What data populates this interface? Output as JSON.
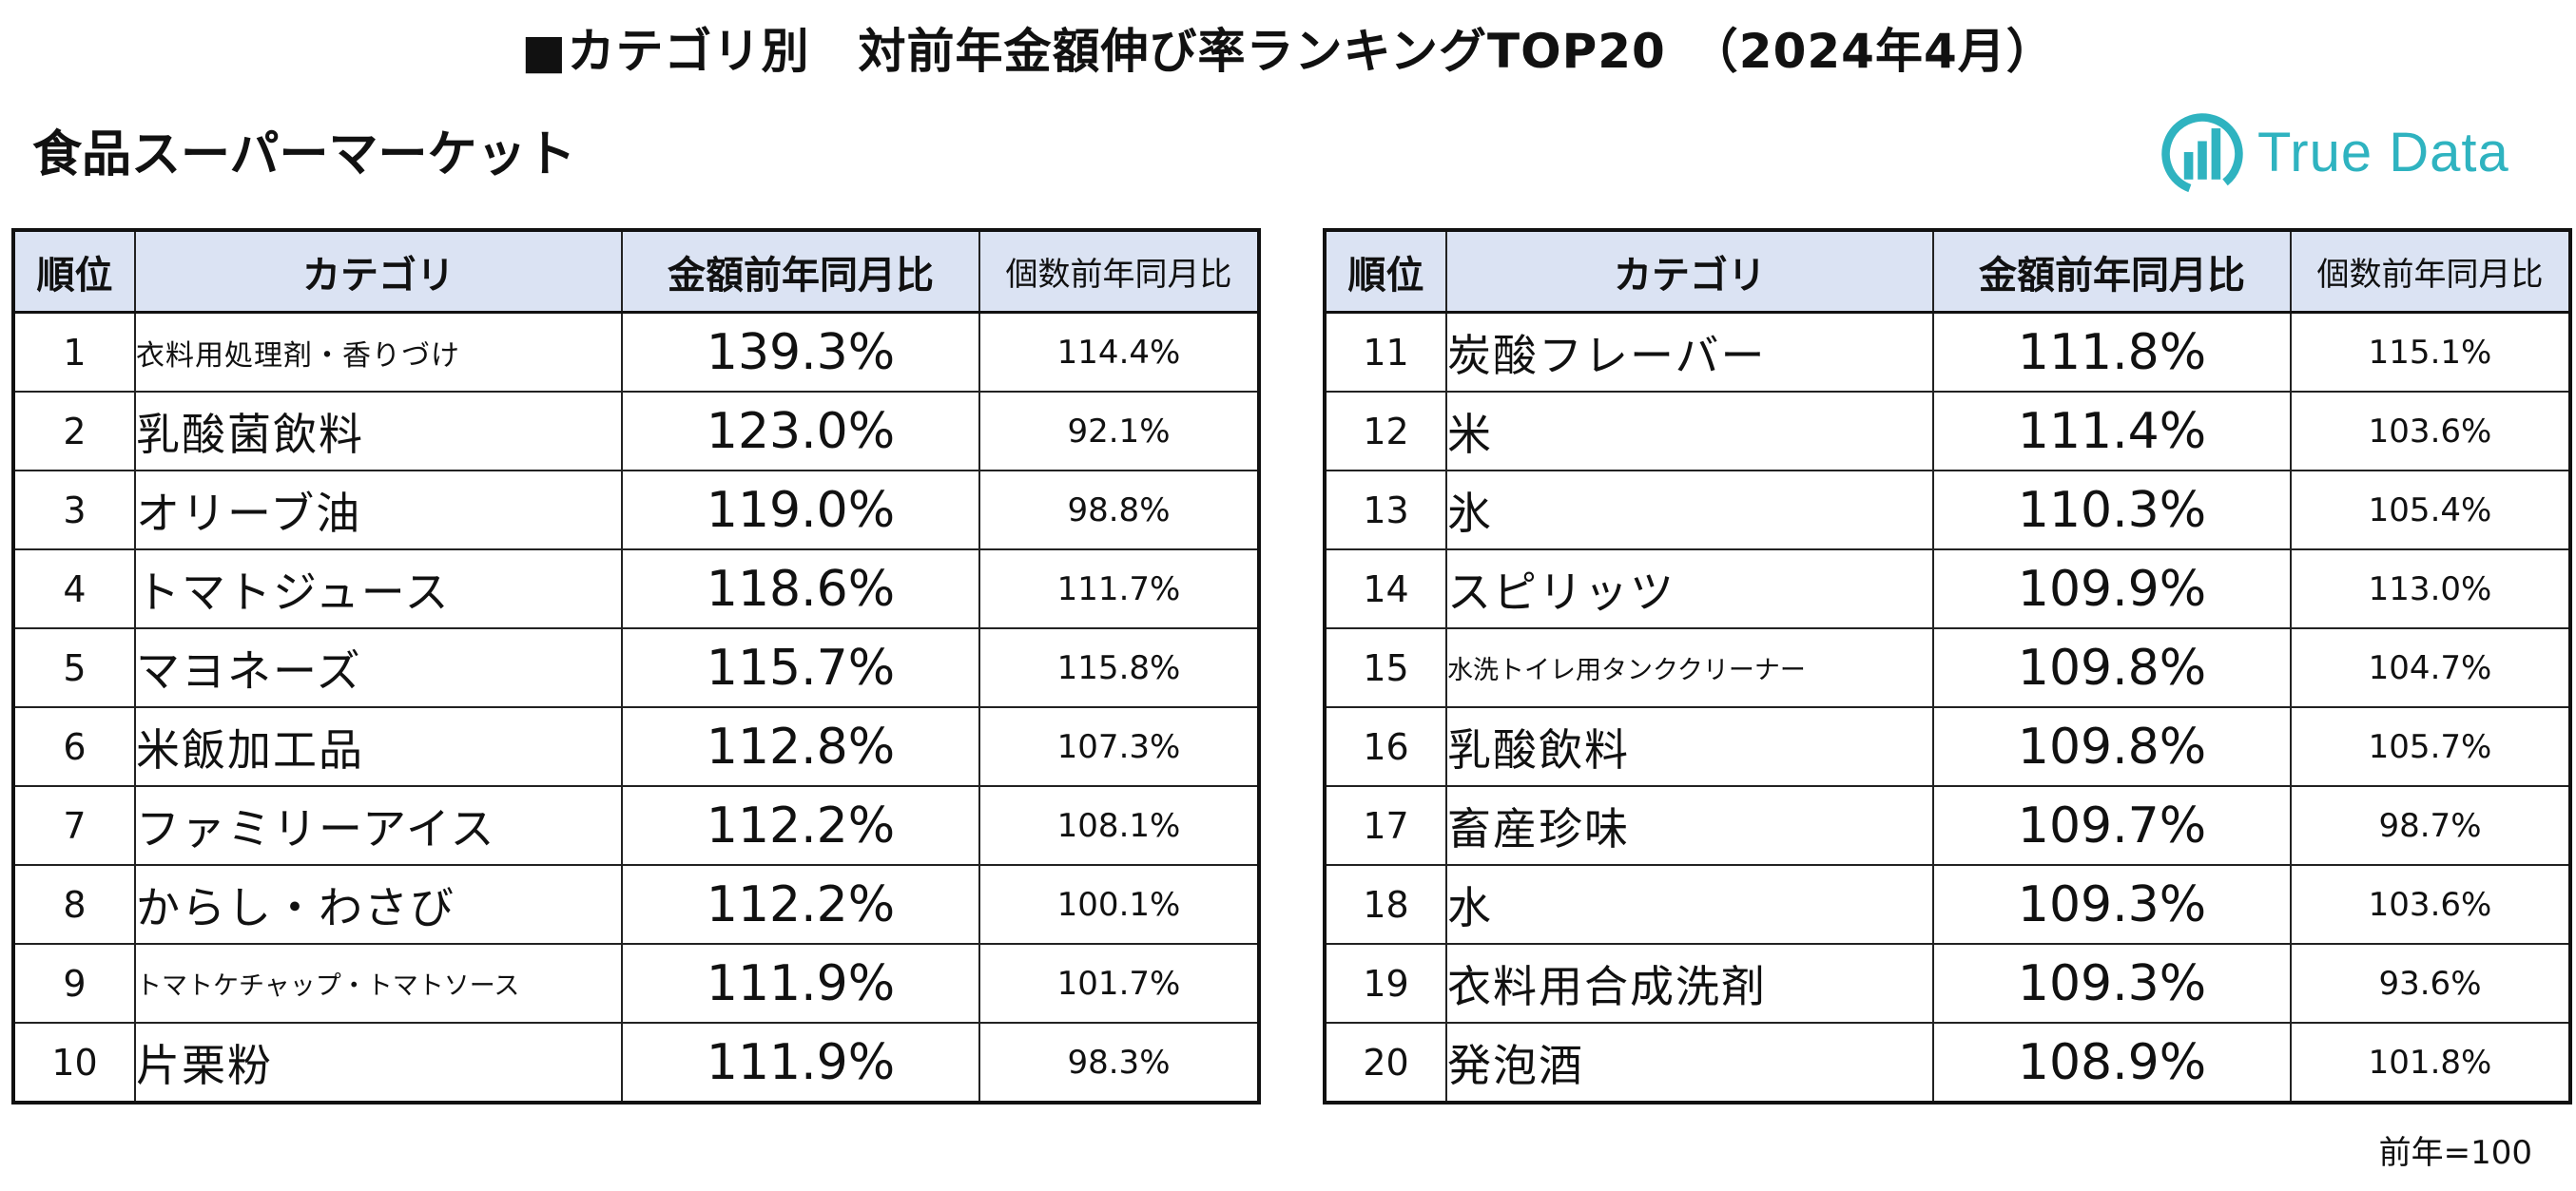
{
  "title": "■カテゴリ別　対前年金額伸び率ランキングTOP20　（2024年4月）",
  "subtitle": "食品スーパーマーケット",
  "logo": {
    "text": "True Data",
    "icon": "bar-chart-circle-logo",
    "color": "#2fb3c0"
  },
  "table": {
    "headers": {
      "rank": "順位",
      "category": "カテゴリ",
      "amount_ratio": "金額前年同月比",
      "unit_ratio": "個数前年同月比"
    },
    "header_bg": "#dbe3f3",
    "left_rows": [
      {
        "rank": "1",
        "category": "衣料用処理剤・香りづけ",
        "amount": "139.3%",
        "units": "114.4%"
      },
      {
        "rank": "2",
        "category": "乳酸菌飲料",
        "amount": "123.0%",
        "units": "92.1%"
      },
      {
        "rank": "3",
        "category": "オリーブ油",
        "amount": "119.0%",
        "units": "98.8%"
      },
      {
        "rank": "4",
        "category": "トマトジュース",
        "amount": "118.6%",
        "units": "111.7%"
      },
      {
        "rank": "5",
        "category": "マヨネーズ",
        "amount": "115.7%",
        "units": "115.8%"
      },
      {
        "rank": "6",
        "category": "米飯加工品",
        "amount": "112.8%",
        "units": "107.3%"
      },
      {
        "rank": "7",
        "category": "ファミリーアイス",
        "amount": "112.2%",
        "units": "108.1%"
      },
      {
        "rank": "8",
        "category": "からし・わさび",
        "amount": "112.2%",
        "units": "100.1%"
      },
      {
        "rank": "9",
        "category": "トマトケチャップ・トマトソース",
        "amount": "111.9%",
        "units": "101.7%"
      },
      {
        "rank": "10",
        "category": "片栗粉",
        "amount": "111.9%",
        "units": "98.3%"
      }
    ],
    "right_rows": [
      {
        "rank": "11",
        "category": "炭酸フレーバー",
        "amount": "111.8%",
        "units": "115.1%"
      },
      {
        "rank": "12",
        "category": "米",
        "amount": "111.4%",
        "units": "103.6%"
      },
      {
        "rank": "13",
        "category": "氷",
        "amount": "110.3%",
        "units": "105.4%"
      },
      {
        "rank": "14",
        "category": "スピリッツ",
        "amount": "109.9%",
        "units": "113.0%"
      },
      {
        "rank": "15",
        "category": "水洗トイレ用タンククリーナー",
        "amount": "109.8%",
        "units": "104.7%"
      },
      {
        "rank": "16",
        "category": "乳酸飲料",
        "amount": "109.8%",
        "units": "105.7%"
      },
      {
        "rank": "17",
        "category": "畜産珍味",
        "amount": "109.7%",
        "units": "98.7%"
      },
      {
        "rank": "18",
        "category": "水",
        "amount": "109.3%",
        "units": "103.6%"
      },
      {
        "rank": "19",
        "category": "衣料用合成洗剤",
        "amount": "109.3%",
        "units": "93.6%"
      },
      {
        "rank": "20",
        "category": "発泡酒",
        "amount": "108.9%",
        "units": "101.8%"
      }
    ]
  },
  "note": "前年=100"
}
